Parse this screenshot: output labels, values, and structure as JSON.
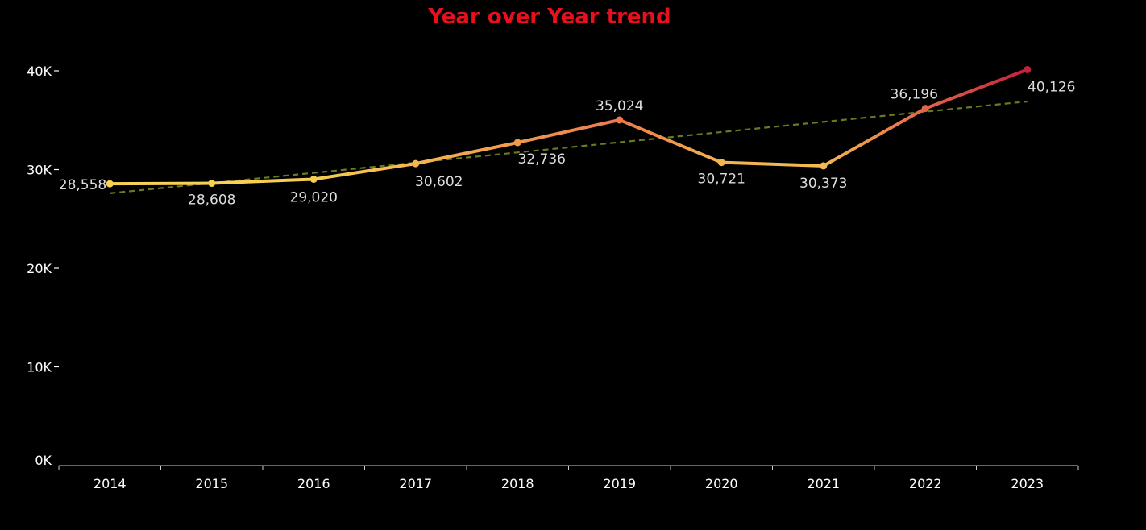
{
  "title": "Year over Year trend",
  "chart_data": {
    "type": "line",
    "title": "Year over Year trend",
    "xlabel": "",
    "ylabel": "",
    "x": [
      "2014",
      "2015",
      "2016",
      "2017",
      "2018",
      "2019",
      "2020",
      "2021",
      "2022",
      "2023"
    ],
    "series": [
      {
        "values": [
          28558,
          28608,
          29020,
          30602,
          32736,
          35024,
          30721,
          30373,
          36196,
          40126
        ],
        "labels": [
          "28,558",
          "28,608",
          "29,020",
          "30,602",
          "32,736",
          "35,024",
          "30,721",
          "30,373",
          "36,196",
          "40,126"
        ]
      }
    ],
    "trend_line": {
      "style": "dashed",
      "color": "#6b7a1e",
      "start": 27600,
      "end": 36900
    },
    "ylim": [
      0,
      42000
    ],
    "y_ticks": [
      0,
      10000,
      20000,
      30000,
      40000
    ],
    "y_tick_labels": [
      "0K",
      "10K",
      "20K",
      "30K",
      "40K"
    ],
    "gridlines": false,
    "legend": "none",
    "colors": {
      "low": "#f7d254",
      "mid": "#ee7b4d",
      "high": "#c2213b",
      "axis": "#ffffff",
      "label": "#dddddd",
      "title": "#e8101f"
    }
  }
}
